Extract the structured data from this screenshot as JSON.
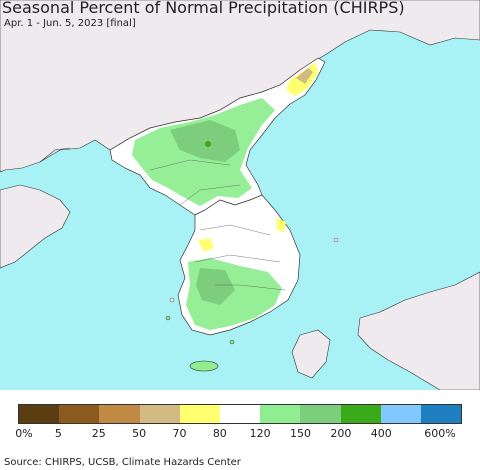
{
  "title": "Seasonal Percent of Normal Precipitation (CHIRPS)",
  "subtitle": "Apr. 1 - Jun. 5, 2023 [final]",
  "source": "Source: CHIRPS, UCSB, Climate Hazards Center",
  "colors": {
    "ocean": "#a8f2f5",
    "land_outside": "#eeeaee",
    "korea_base": "#ffffff",
    "border": "#333333"
  },
  "legend": {
    "colors": [
      "#5a3d10",
      "#8b5a1e",
      "#c08a45",
      "#d2ba82",
      "#ffff70",
      "#ffffff",
      "#90ee90",
      "#7ccd7c",
      "#3aaa1a",
      "#80c8ff",
      "#1e7fc0"
    ],
    "ticks": [
      "0%",
      "5",
      "25",
      "50",
      "70",
      "80",
      "120",
      "150",
      "200",
      "400",
      "600%"
    ]
  }
}
